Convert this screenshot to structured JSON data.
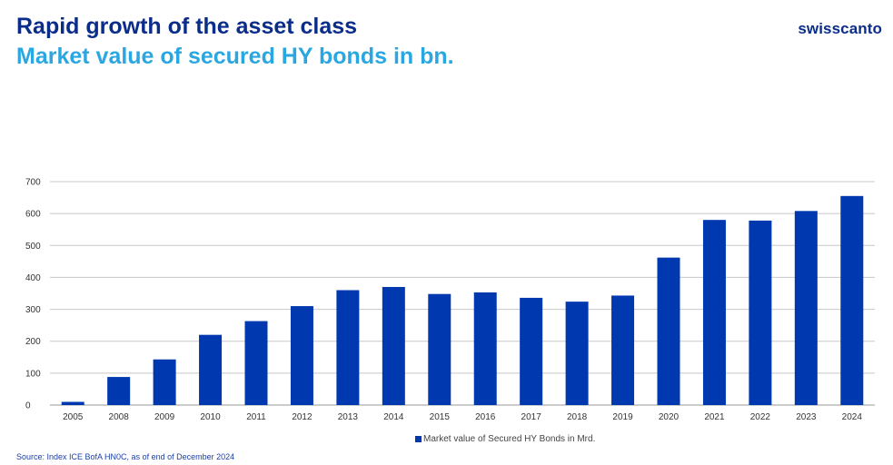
{
  "header": {
    "title": "Rapid growth of the asset class",
    "subtitle": "Market value of secured HY bonds in bn.",
    "logo": "swisscanto"
  },
  "footer": {
    "source": "Source: Index ICE BofA HN0C, as of end of December 2024"
  },
  "colors": {
    "bar": "#0038b0",
    "grid": "#c8c8c8",
    "title": "#0a2d8a",
    "subtitle": "#2aa7e1"
  },
  "chart_data": {
    "type": "bar",
    "title": "Market value of secured HY bonds in bn.",
    "xlabel": "",
    "ylabel": "",
    "categories": [
      "2005",
      "2008",
      "2009",
      "2010",
      "2011",
      "2012",
      "2013",
      "2014",
      "2015",
      "2016",
      "2017",
      "2018",
      "2019",
      "2020",
      "2021",
      "2022",
      "2023",
      "2024"
    ],
    "series": [
      {
        "name": "Market value of Secured HY Bonds in Mrd.",
        "values": [
          10,
          88,
          143,
          220,
          263,
          310,
          360,
          370,
          348,
          353,
          336,
          324,
          343,
          462,
          580,
          578,
          608,
          655
        ]
      }
    ],
    "ylim": [
      0,
      700
    ],
    "yticks": [
      0,
      100,
      200,
      300,
      400,
      500,
      600,
      700
    ],
    "grid": true,
    "legend": "bottom-center"
  }
}
